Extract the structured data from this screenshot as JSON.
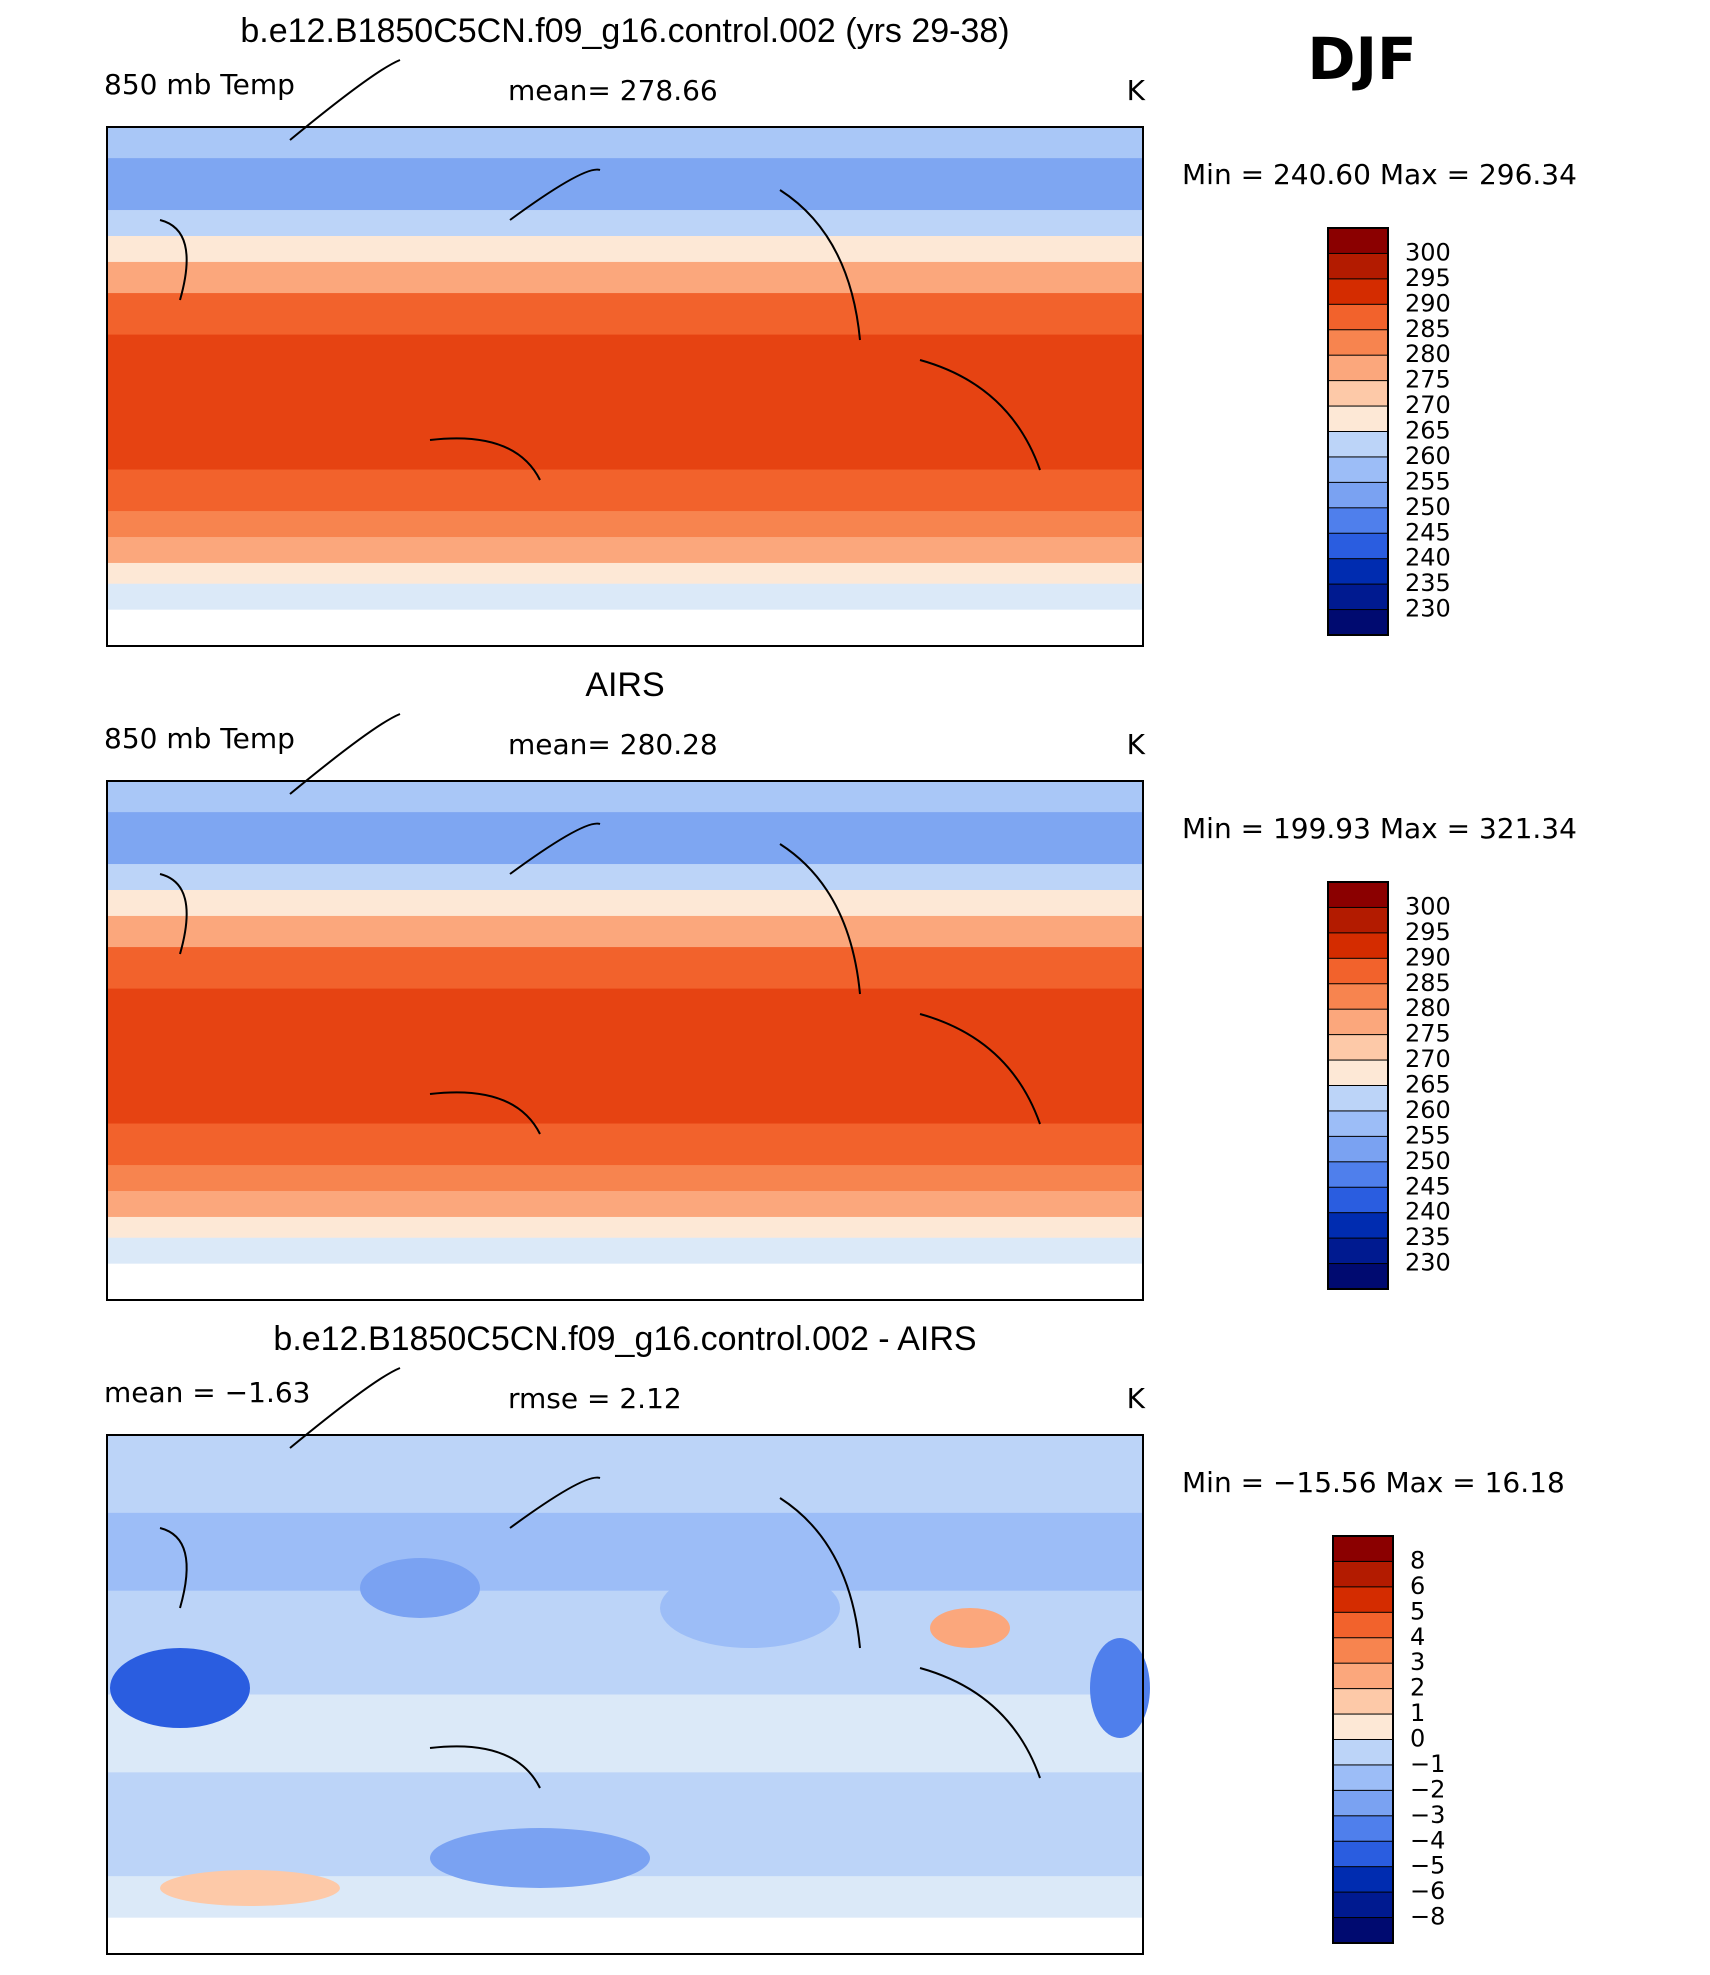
{
  "season": "DJF",
  "panels": [
    {
      "title": "b.e12.B1850C5CN.f09_g16.control.002 (yrs 29-38)",
      "left": "850 mb Temp",
      "center": "mean=  278.66",
      "units": "K",
      "stats": "Min = 240.60 Max = 296.34",
      "colorbar": {
        "labels": [
          "300",
          "295",
          "290",
          "285",
          "280",
          "275",
          "270",
          "265",
          "260",
          "255",
          "250",
          "245",
          "240",
          "235",
          "230"
        ],
        "colors": [
          "#8b0000",
          "#b31b00",
          "#d42c00",
          "#e64312",
          "#f2622c",
          "#f7844f",
          "#fba77c",
          "#fdc9a8",
          "#fde8d6",
          "#dbe9f8",
          "#bcd4f8",
          "#9cbdf7",
          "#7aa2f2",
          "#4f7fec",
          "#2a5de0",
          "#0a3fd0",
          "#002cb0",
          "#001a90",
          "#000a70"
        ]
      }
    },
    {
      "title": "AIRS",
      "left": "850 mb Temp",
      "center": "mean=  280.28",
      "units": "K",
      "stats": "Min = 199.93 Max = 321.34",
      "colorbar": {
        "labels": [
          "300",
          "295",
          "290",
          "285",
          "280",
          "275",
          "270",
          "265",
          "260",
          "255",
          "250",
          "245",
          "240",
          "235",
          "230"
        ],
        "colors": [
          "#8b0000",
          "#b31b00",
          "#d42c00",
          "#e64312",
          "#f2622c",
          "#f7844f",
          "#fba77c",
          "#fdc9a8",
          "#fde8d6",
          "#dbe9f8",
          "#bcd4f8",
          "#9cbdf7",
          "#7aa2f2",
          "#4f7fec",
          "#2a5de0",
          "#0a3fd0",
          "#002cb0",
          "#001a90",
          "#000a70"
        ]
      }
    },
    {
      "title": "b.e12.B1850C5CN.f09_g16.control.002 - AIRS",
      "left": "mean =   −1.63",
      "center": "rmse =    2.12",
      "units": "K",
      "stats": "Min = −15.56 Max =   16.18",
      "colorbar": {
        "labels": [
          "8",
          "6",
          "5",
          "4",
          "3",
          "2",
          "1",
          "0",
          "−1",
          "−2",
          "−3",
          "−4",
          "−5",
          "−6",
          "−8"
        ],
        "colors": [
          "#8b0000",
          "#b31b00",
          "#d42c00",
          "#e64312",
          "#f2622c",
          "#f7844f",
          "#fba77c",
          "#fdc9a8",
          "#fde8d6",
          "#dbe9f8",
          "#bcd4f8",
          "#9cbdf7",
          "#7aa2f2",
          "#4f7fec",
          "#2a5de0",
          "#0a3fd0",
          "#002cb0",
          "#001a90",
          "#000a70"
        ]
      }
    }
  ]
}
